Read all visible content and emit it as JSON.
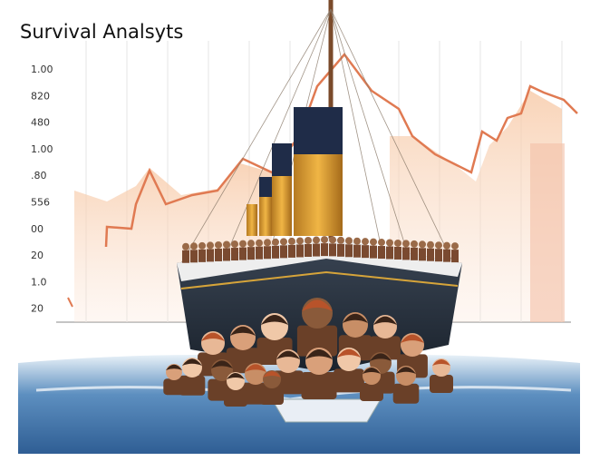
{
  "title": "Survival Analsyts",
  "y_labels": [
    "1.00",
    "820",
    "480",
    "1.00",
    ".80",
    "556",
    "00",
    "20",
    "1.0",
    "20"
  ]
}
